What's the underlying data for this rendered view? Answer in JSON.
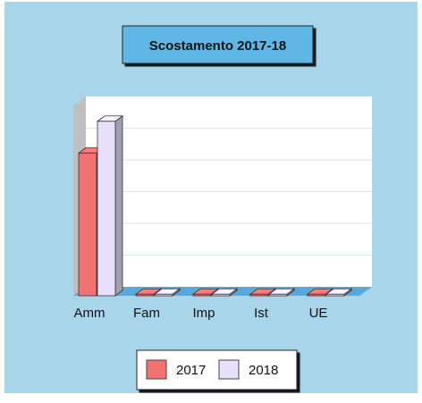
{
  "chart_data": {
    "type": "bar",
    "title": "Scostamento 2017-18",
    "categories": [
      "Amm",
      "Fam",
      "Imp",
      "Ist",
      "UE"
    ],
    "series": [
      {
        "name": "2017",
        "values": [
          4.5,
          0.05,
          0.05,
          0.05,
          0.05
        ]
      },
      {
        "name": "2018",
        "values": [
          5.5,
          0.05,
          0.05,
          0.05,
          0.05
        ]
      }
    ],
    "ylim": [
      0,
      6
    ],
    "grid": true,
    "legend_position": "bottom",
    "three_d": true,
    "colors": {
      "background": "#a9d5ea",
      "plot_area": "#ffffff",
      "gridline": "#d4e6ef",
      "floor": "#5ba8d8",
      "side_wall": "#c0c0c0",
      "title_box": "#5eb7e6",
      "series": [
        "#f27272",
        "#e8e0fb"
      ]
    }
  }
}
